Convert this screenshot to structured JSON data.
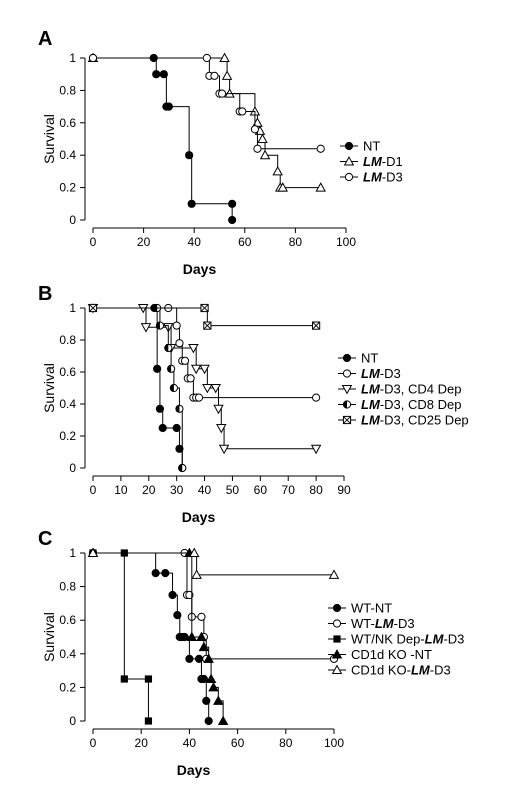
{
  "chart_data": [
    {
      "type": "line",
      "step": true,
      "panel_label": "A",
      "xlabel": "Days",
      "ylabel": "Survival",
      "xlim": [
        0,
        100
      ],
      "ylim": [
        0,
        1
      ],
      "xticks": [
        "0",
        "20",
        "40",
        "60",
        "80",
        "100"
      ],
      "yticks": [
        "0",
        "0.2",
        "0.4",
        "0.6",
        "0.8",
        "1"
      ],
      "grid": false,
      "legend_position": "right",
      "series": [
        {
          "name": "NT",
          "marker": "filled-circle",
          "x": [
            0,
            24,
            25,
            28,
            29,
            30,
            38,
            39,
            55,
            55
          ],
          "y": [
            1,
            1,
            0.9,
            0.9,
            0.7,
            0.7,
            0.4,
            0.1,
            0.1,
            0
          ]
        },
        {
          "name": "LM-D1",
          "marker": "open-triangle",
          "x": [
            0,
            52,
            53,
            54,
            64,
            65,
            66,
            67,
            68,
            73,
            74,
            75,
            90
          ],
          "y": [
            1,
            1,
            0.89,
            0.78,
            0.67,
            0.6,
            0.55,
            0.5,
            0.4,
            0.3,
            0.2,
            0.2,
            0.2
          ]
        },
        {
          "name": "LM-D3",
          "marker": "open-circle",
          "x": [
            0,
            45,
            46,
            48,
            50,
            51,
            58,
            59,
            64,
            65,
            90
          ],
          "y": [
            1,
            1,
            0.89,
            0.89,
            0.78,
            0.78,
            0.67,
            0.67,
            0.56,
            0.44,
            0.44
          ]
        }
      ]
    },
    {
      "type": "line",
      "step": true,
      "panel_label": "B",
      "xlabel": "Days",
      "ylabel": "Survival",
      "xlim": [
        0,
        90
      ],
      "ylim": [
        0,
        1
      ],
      "xticks": [
        "0",
        "10",
        "20",
        "30",
        "40",
        "50",
        "60",
        "70",
        "80",
        "90"
      ],
      "yticks": [
        "0",
        "0.2",
        "0.4",
        "0.6",
        "0.8",
        "1"
      ],
      "grid": false,
      "legend_position": "right",
      "series": [
        {
          "name": "NT",
          "marker": "filled-circle",
          "x": [
            0,
            22,
            23,
            24,
            25,
            30,
            31,
            32
          ],
          "y": [
            1,
            1,
            0.62,
            0.37,
            0.25,
            0.25,
            0.12,
            0
          ]
        },
        {
          "name": "LM-D3",
          "marker": "open-circle",
          "x": [
            0,
            27,
            30,
            31,
            32,
            33,
            34,
            35,
            36,
            37,
            38,
            80
          ],
          "y": [
            1,
            1,
            0.89,
            0.78,
            0.67,
            0.67,
            0.56,
            0.56,
            0.44,
            0.44,
            0.44,
            0.44
          ]
        },
        {
          "name": "LM-D3, CD4 Dep",
          "marker": "open-triangle-down",
          "x": [
            0,
            18,
            19,
            27,
            28,
            36,
            37,
            40,
            41,
            44,
            45,
            46,
            47,
            80
          ],
          "y": [
            1,
            1,
            0.88,
            0.88,
            0.75,
            0.75,
            0.62,
            0.62,
            0.5,
            0.5,
            0.37,
            0.25,
            0.12,
            0.12
          ]
        },
        {
          "name": "LM-D3, CD8 Dep",
          "marker": "half-filled-circle",
          "x": [
            0,
            23,
            24,
            27,
            28,
            29,
            31,
            32
          ],
          "y": [
            1,
            1,
            0.89,
            0.75,
            0.62,
            0.5,
            0.37,
            0
          ]
        },
        {
          "name": "LM-D3, CD25 Dep",
          "marker": "crossed-square",
          "x": [
            0,
            40,
            41,
            80
          ],
          "y": [
            1,
            1,
            0.89,
            0.89
          ]
        }
      ]
    },
    {
      "type": "line",
      "step": true,
      "panel_label": "C",
      "xlabel": "Days",
      "ylabel": "Survival",
      "xlim": [
        0,
        100
      ],
      "ylim": [
        0,
        1
      ],
      "xticks": [
        "0",
        "20",
        "40",
        "60",
        "80",
        "100"
      ],
      "yticks": [
        "0",
        "0.2",
        "0.4",
        "0.6",
        "0.8",
        "1"
      ],
      "grid": false,
      "legend_position": "right",
      "series": [
        {
          "name": "WT-NT",
          "marker": "filled-circle",
          "x": [
            0,
            26,
            30,
            33,
            35,
            36,
            37,
            38,
            40,
            44,
            45,
            46,
            47,
            48
          ],
          "y": [
            1,
            0.88,
            0.88,
            0.75,
            0.63,
            0.5,
            0.5,
            0.5,
            0.37,
            0.37,
            0.25,
            0.25,
            0.12,
            0
          ]
        },
        {
          "name": "WT-LM-D3",
          "marker": "open-circle",
          "x": [
            0,
            38,
            39,
            40,
            41,
            45,
            46,
            47,
            100
          ],
          "y": [
            1,
            1,
            0.75,
            0.75,
            0.62,
            0.62,
            0.5,
            0.37,
            0.37
          ]
        },
        {
          "name": "WT/NK Dep-LM-D3",
          "marker": "filled-square",
          "x": [
            0,
            13,
            13,
            23,
            23
          ],
          "y": [
            1,
            1,
            0.25,
            0.25,
            0
          ]
        },
        {
          "name": "CD1d KO -NT",
          "marker": "filled-triangle",
          "x": [
            0,
            40,
            41,
            45,
            46,
            48,
            49,
            50,
            52,
            54
          ],
          "y": [
            1,
            1,
            0.5,
            0.5,
            0.44,
            0.37,
            0.25,
            0.2,
            0.12,
            0
          ]
        },
        {
          "name": "CD1d KO-LM-D3",
          "marker": "open-triangle",
          "x": [
            0,
            42,
            43,
            100
          ],
          "y": [
            1,
            1,
            0.87,
            0.87
          ]
        }
      ]
    }
  ]
}
